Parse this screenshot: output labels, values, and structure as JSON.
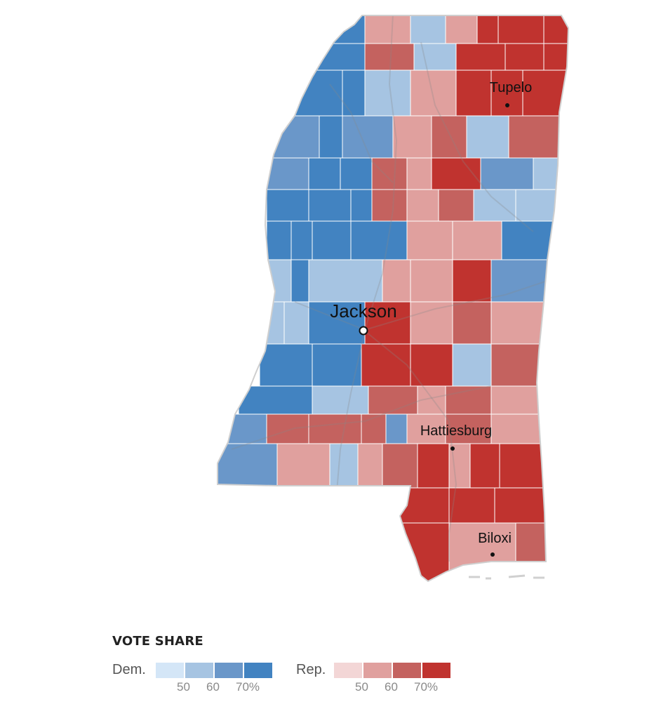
{
  "map": {
    "state": "Mississippi",
    "cities": [
      {
        "name": "Tupelo",
        "marker": "dot"
      },
      {
        "name": "Jackson",
        "marker": "capital-circle"
      },
      {
        "name": "Hattiesburg",
        "marker": "dot"
      },
      {
        "name": "Biloxi",
        "marker": "dot"
      }
    ],
    "colors": {
      "dem": [
        "#d4e6f7",
        "#a6c4e2",
        "#6a97c9",
        "#4283c1"
      ],
      "rep": [
        "#f3d6d6",
        "#e0a09e",
        "#c4625f",
        "#c0332f"
      ],
      "border": "#ffffff",
      "outline": "#cccccc",
      "roads": "#8a8a8a"
    }
  },
  "legend": {
    "title": "VOTE SHARE",
    "dem_label": "Dem.",
    "rep_label": "Rep.",
    "dem_ticks": [
      "50",
      "60",
      "70%"
    ],
    "rep_ticks": [
      "50",
      "60",
      "70%"
    ]
  }
}
